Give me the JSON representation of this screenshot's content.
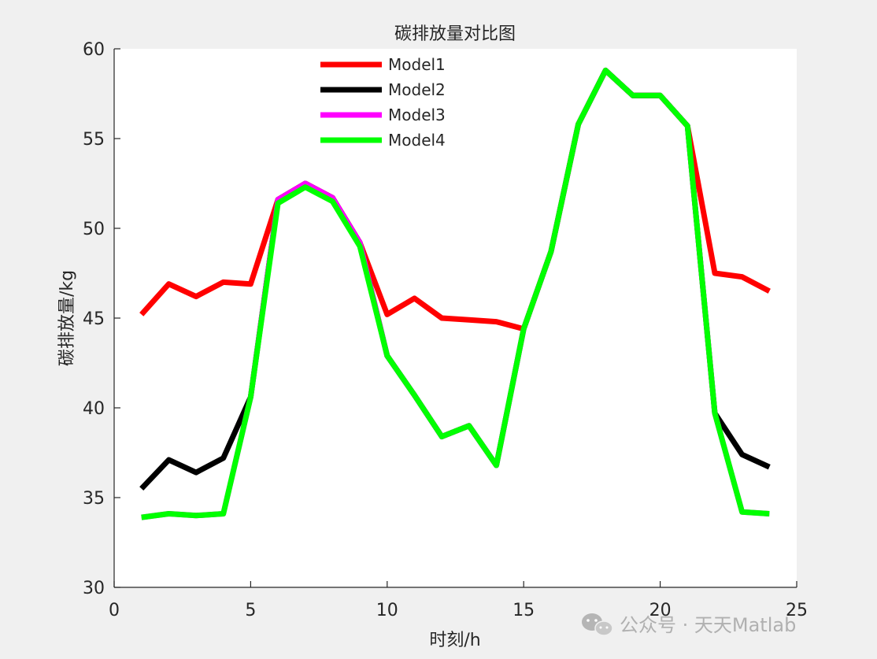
{
  "watermark": {
    "text": "公众号 · 天天Matlab",
    "icon": "wechat-icon"
  },
  "chart_data": {
    "type": "line",
    "title": "碳排放量对比图",
    "xlabel": "时刻/h",
    "ylabel": "碳排放量/kg",
    "xlim": [
      0,
      25
    ],
    "ylim": [
      30,
      60
    ],
    "xticks": [
      0,
      5,
      10,
      15,
      20,
      25
    ],
    "yticks": [
      30,
      35,
      40,
      45,
      50,
      55,
      60
    ],
    "grid": false,
    "legend_position": "top-center",
    "x": [
      1,
      2,
      3,
      4,
      5,
      6,
      7,
      8,
      9,
      10,
      11,
      12,
      13,
      14,
      15,
      16,
      17,
      18,
      19,
      20,
      21,
      22,
      23,
      24
    ],
    "series": [
      {
        "name": "Model1",
        "color": "#ff0000",
        "values": [
          45.2,
          46.9,
          46.2,
          47.0,
          46.9,
          51.6,
          52.5,
          51.7,
          49.2,
          45.2,
          46.1,
          45.0,
          44.9,
          44.8,
          44.4,
          48.7,
          55.8,
          58.8,
          57.4,
          57.4,
          55.7,
          47.5,
          47.3,
          46.5
        ]
      },
      {
        "name": "Model2",
        "color": "#000000",
        "values": [
          35.5,
          37.1,
          36.4,
          37.2,
          40.6,
          51.6,
          52.5,
          51.7,
          49.2,
          42.9,
          40.7,
          38.4,
          39.0,
          36.8,
          44.4,
          48.7,
          55.8,
          58.8,
          57.4,
          57.4,
          55.7,
          39.7,
          37.4,
          36.7
        ]
      },
      {
        "name": "Model3",
        "color": "#ff00ff",
        "values": [
          33.9,
          34.1,
          34.0,
          34.1,
          40.6,
          51.6,
          52.5,
          51.7,
          49.2,
          42.9,
          40.7,
          38.4,
          39.0,
          36.8,
          44.4,
          48.7,
          55.8,
          58.8,
          57.4,
          57.4,
          55.7,
          39.7,
          34.2,
          34.1
        ]
      },
      {
        "name": "Model4",
        "color": "#00ff00",
        "values": [
          33.9,
          34.1,
          34.0,
          34.1,
          40.6,
          51.4,
          52.3,
          51.5,
          49.0,
          42.9,
          40.7,
          38.4,
          39.0,
          36.8,
          44.4,
          48.7,
          55.8,
          58.8,
          57.4,
          57.4,
          55.7,
          39.7,
          34.2,
          34.1
        ]
      }
    ]
  }
}
